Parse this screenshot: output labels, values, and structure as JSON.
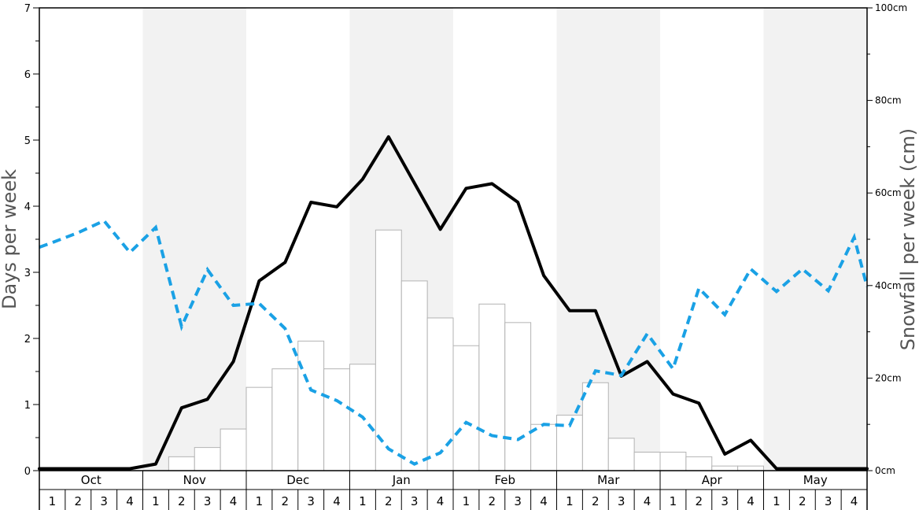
{
  "chart_data": {
    "type": "bar",
    "y_left": {
      "label": "Days per week",
      "ylim": [
        0,
        7
      ],
      "ticks": [
        "0",
        "1",
        "2",
        "3",
        "4",
        "5",
        "6",
        "7"
      ]
    },
    "y_right": {
      "label": "Snowfall per week (cm)",
      "ylim": [
        0,
        100
      ],
      "ticks": [
        "0cm",
        "20cm",
        "40cm",
        "60cm",
        "80cm",
        "100cm"
      ]
    },
    "months": [
      {
        "name": "Oct",
        "weeks": [
          "1",
          "2",
          "3",
          "4"
        ],
        "shaded": false
      },
      {
        "name": "Nov",
        "weeks": [
          "1",
          "2",
          "3",
          "4"
        ],
        "shaded": true
      },
      {
        "name": "Dec",
        "weeks": [
          "1",
          "2",
          "3",
          "4"
        ],
        "shaded": false
      },
      {
        "name": "Jan",
        "weeks": [
          "1",
          "2",
          "3",
          "4"
        ],
        "shaded": true
      },
      {
        "name": "Feb",
        "weeks": [
          "1",
          "2",
          "3",
          "4"
        ],
        "shaded": false
      },
      {
        "name": "Mar",
        "weeks": [
          "1",
          "2",
          "3",
          "4"
        ],
        "shaded": true
      },
      {
        "name": "Apr",
        "weeks": [
          "1",
          "2",
          "3",
          "4"
        ],
        "shaded": false
      },
      {
        "name": "May",
        "weeks": [
          "1",
          "2",
          "3",
          "4"
        ],
        "shaded": true
      }
    ],
    "snowfall_bars_cm": [
      0,
      0,
      0,
      0,
      0,
      3,
      5,
      9,
      18,
      22,
      28,
      22,
      23,
      52,
      41,
      33,
      27,
      36,
      32,
      10,
      12,
      19,
      7,
      4,
      4,
      3,
      1,
      1,
      0,
      0,
      0,
      0
    ],
    "snow_days_line": [
      0.03,
      0.03,
      0.03,
      0.03,
      0.1,
      0.95,
      1.08,
      1.65,
      2.87,
      3.15,
      4.06,
      3.99,
      4.41,
      5.05,
      4.35,
      3.65,
      4.27,
      4.34,
      4.06,
      2.95,
      2.42,
      2.42,
      1.43,
      1.65,
      1.16,
      1.02,
      0.25,
      0.46,
      0.03,
      0.03,
      0.03,
      0.03
    ],
    "dashed_line": [
      3.45,
      3.6,
      3.78,
      3.3,
      3.68,
      2.18,
      3.04,
      2.5,
      2.53,
      2.15,
      1.22,
      1.06,
      0.81,
      0.33,
      0.1,
      0.27,
      0.73,
      0.53,
      0.47,
      0.7,
      0.68,
      1.51,
      1.44,
      2.07,
      1.54,
      2.76,
      2.36,
      3.05,
      2.71,
      3.05,
      2.72,
      3.53
    ],
    "colors": {
      "bars_fill": "#ffffff",
      "bars_stroke": "#b3b3b3",
      "solid_line": "#000000",
      "dashed_line": "#1aa1e5",
      "shade": "#f2f2f2"
    }
  }
}
